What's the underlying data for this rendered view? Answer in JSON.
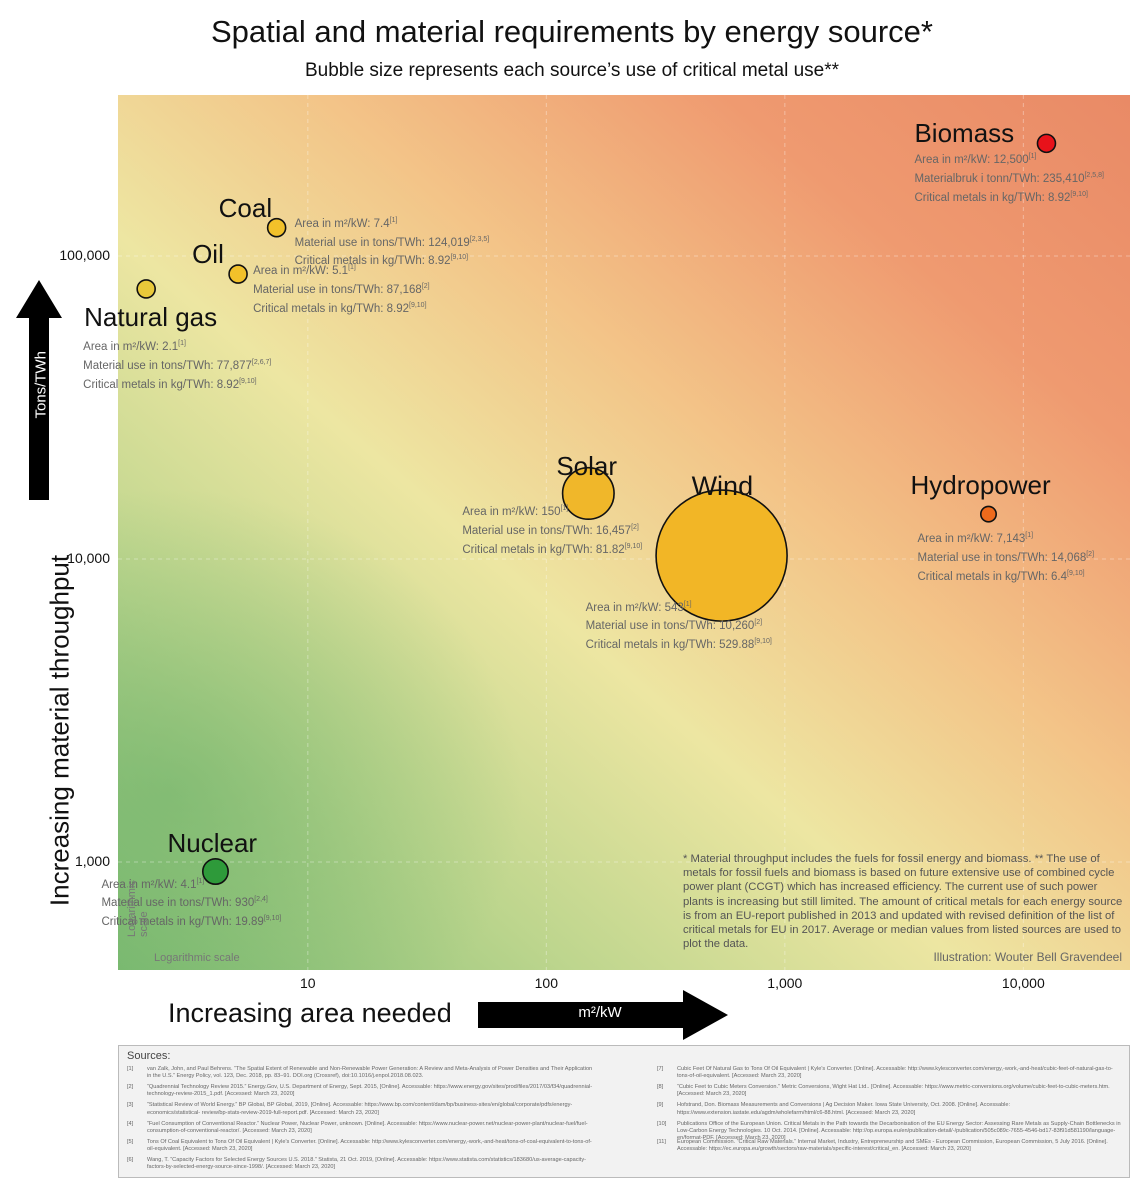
{
  "title": "Spatial and material requirements by energy source*",
  "subtitle": "Bubble size represents each source’s use of critical metal use**",
  "axes": {
    "y_label": "Increasing material throughput",
    "y_unit": "Tons/TWh",
    "x_label": "Increasing area needed",
    "x_unit": "m²/kW",
    "y_ticks": [
      "100,000",
      "10,000",
      "1,000"
    ],
    "x_ticks": [
      "10",
      "100",
      "1,000",
      "10,000"
    ],
    "log_note_y": "Logarithmic scale",
    "log_note_x": "Logarithmic scale"
  },
  "footnote": "* Material throughput includes the fuels for fossil energy and biomass. ** The use of metals for fossil fuels and biomass is based on future extensive use of combined cycle power plant (CCGT) which has increased efficiency. The current use of such power plants is increasing but still limited. The amount of critical metals for each energy source is from an EU-report published in 2013 and updated with revised definition of the list of critical metals for EU in 2017. Average or median values from listed sources are used to plot the data.",
  "credit": "Illustration: Wouter Bell Gravendeel",
  "chart_data": {
    "type": "scatter",
    "title": "Spatial and material requirements by energy source*",
    "subtitle": "Bubble size represents each source’s use of critical metal use**",
    "xlabel": "Increasing area needed",
    "x_unit": "m²/kW",
    "ylabel": "Increasing material throughput",
    "y_unit": "Tons/TWh",
    "x_scale": "log",
    "y_scale": "log",
    "xlim": [
      1.6,
      28000
    ],
    "ylim": [
      440,
      340000
    ],
    "size_variable": "Critical metals in kg/TWh",
    "points": [
      {
        "name": "Coal",
        "area": 7.4,
        "material": 124019,
        "metals": 8.92,
        "color": "#f2c12a",
        "lines": [
          "Area in m²/kW: 7.4",
          "Material use in tons/TWh: 124,019",
          "Critical metals in kg/TWh: 8.92"
        ],
        "refs": [
          "[1]",
          "[2,3,5]",
          "[9,10]"
        ]
      },
      {
        "name": "Oil",
        "area": 5.1,
        "material": 87168,
        "metals": 8.92,
        "color": "#f2c12a",
        "lines": [
          "Area in m²/kW: 5.1",
          "Material use in tons/TWh: 87,168",
          "Critical metals in kg/TWh: 8.92"
        ],
        "refs": [
          "[1]",
          "[2]",
          "[9,10]"
        ]
      },
      {
        "name": "Natural gas",
        "area": 2.1,
        "material": 77877,
        "metals": 8.92,
        "color": "#e9c93a",
        "lines": [
          "Area in m²/kW: 2.1",
          "Material use in tons/TWh: 77,877",
          "Critical metals in kg/TWh: 8.92"
        ],
        "refs": [
          "[1]",
          "[2,6,7]",
          "[9,10]"
        ]
      },
      {
        "name": "Biomass",
        "area": 12500,
        "material": 235410,
        "metals": 8.92,
        "color": "#e8121a",
        "lines": [
          "Area in m²/kW: 12,500",
          "Materialbruk i tonn/TWh: 235,410",
          "Critical metals in kg/TWh: 8.92"
        ],
        "refs": [
          "[1]",
          "[2,5,8]",
          "[9,10]"
        ]
      },
      {
        "name": "Solar",
        "area": 150,
        "material": 16457,
        "metals": 81.82,
        "color": "#f0b72a",
        "lines": [
          "Area in m²/kW: 150",
          "Material use in tons/TWh: 16,457",
          "Critical metals in kg/TWh: 81.82"
        ],
        "refs": [
          "[1]",
          "[2]",
          "[9,10]"
        ]
      },
      {
        "name": "Wind",
        "area": 543,
        "material": 10260,
        "metals": 529.88,
        "color": "#f2b626",
        "lines": [
          "Area in m²/kW: 543",
          "Material use in tons/TWh: 10,260",
          "Critical metals in kg/TWh: 529.88"
        ],
        "refs": [
          "[1]",
          "[2]",
          "[9,10]"
        ]
      },
      {
        "name": "Hydropower",
        "area": 7143,
        "material": 14068,
        "metals": 6.4,
        "color": "#ee6a1c",
        "lines": [
          "Area in m²/kW: 7,143",
          "Material use in tons/TWh: 14,068",
          "Critical metals in kg/TWh: 6.4"
        ],
        "refs": [
          "[1]",
          "[2]",
          "[9,10]"
        ]
      },
      {
        "name": "Nuclear",
        "area": 4.1,
        "material": 930,
        "metals": 19.89,
        "color": "#2e9a3a",
        "lines": [
          "Area in m²/kW: 4.1",
          "Material use in tons/TWh: 930",
          "Critical metals in kg/TWh: 19.89"
        ],
        "refs": [
          "[1]",
          "[2,4]",
          "[9,10]"
        ]
      }
    ]
  },
  "sources": {
    "title": "Sources:",
    "refs": [
      {
        "n": "[1]",
        "text": "van Zalk, John, and Paul Behrens. “The Spatial Extent of Renewable and Non-Renewable Power Generation: A Review and Meta-Analysis of Power Densities and Their Application in the U.S.” Energy Policy, vol. 123, Dec. 2018, pp. 83–91. DOI.org (Crossref), doi:10.1016/j.enpol.2018.08.023."
      },
      {
        "n": "[2]",
        "text": "“Quadrennial Technology Review 2015.” Energy.Gov, U.S. Department of Energy, Sept. 2015, [Online]. Accessable: https://www.energy.gov/sites/prod/files/2017/03/f34/quadrennial-technology-review-2015_1.pdf. [Accessed: March 23, 2020]"
      },
      {
        "n": "[3]",
        "text": "“Statistical Review of World Energy.” BP Global, BP Global, 2019, [Online]. Accessable: https://www.bp.com/content/dam/bp/business-sites/en/global/corporate/pdfs/energy-economics/statistical- review/bp-stats-review-2019-full-report.pdf. [Accessed: March 23, 2020]"
      },
      {
        "n": "[4]",
        "text": "“Fuel Consumption of Conventional Reactor.” Nuclear Power, Nuclear Power, unknown. [Online]. Accessable: https://www.nuclear-power.net/nuclear-power-plant/nuclear-fuel/fuel-consumption-of-conventional-reactor/. [Accessed: March 23, 2020]"
      },
      {
        "n": "[5]",
        "text": "Tons Of Coal Equivalent to Tons Of Oil Equivalent | Kyle's Converter. [Online]. Accessable: http://www.kylesconverter.com/energy,-work,-and-heat/tons-of-coal-equivalent-to-tons-of-oil-equivalent. [Accessed: March 23, 2020]"
      },
      {
        "n": "[6]",
        "text": "Wang, T. “Capacity Factors for Selected Energy Sources U.S. 2018.” Statista, 21 Oct. 2019, [Online]. Accessable: https://www.statista.com/statistics/183680/us-average-capacity-factors-by-selected-energy-source-since-1998/. [Accessed: March 23, 2020]"
      },
      {
        "n": "[7]",
        "text": "Cubic Feet Of Natural Gas to Tons Of Oil Equivalent | Kyle's Converter. [Online]. Accessable: http://www.kylesconverter.com/energy,-work,-and-heat/cubic-feet-of-natural-gas-to-tons-of-oil-equivalent. [Accessed: March 23, 2020]"
      },
      {
        "n": "[8]",
        "text": "“Cubic Feet to Cubic Meters Conversion.” Metric Conversions, Wight Hat Ltd.. [Online]. Accessable: https://www.metric-conversions.org/volume/cubic-feet-to-cubic-meters.htm. [Accessed: March 23, 2020]"
      },
      {
        "n": "[9]",
        "text": "Hofstrand, Don. Biomass Measurements and Conversions | Ag Decision Maker. Iowa State University, Oct. 2008. [Online]. Accessable: https://www.extension.iastate.edu/agdm/wholefarm/html/c6-88.html. [Accessed: March 23, 2020]"
      },
      {
        "n": "[10]",
        "text": "Publications Office of the European Union. Critical Metals in the Path towards the Decarbonisation of the EU Energy Sector: Assessing Rare Metals as Supply-Chain Bottlenecks in Low-Carbon Energy Technologies. 10 Oct. 2014. [Online]. Accessable: http://op.europa.eu/en/publication-detail/-/publication/505c089c-7655-4546-bd17-83f91d581190/language-en/format-PDF. [Accessed: March 23, 2020]"
      },
      {
        "n": "[11]",
        "text": "European Commission. “Critical Raw Materials.” Internal Market, Industry, Entrepreneurship and SMEs - European Commission, European Commission, 5 July 2016. [Online]. Accessable: https://ec.europa.eu/growth/sectors/raw-materials/specific-interest/critical_en. [Accessed: March 23, 2020]"
      }
    ]
  }
}
